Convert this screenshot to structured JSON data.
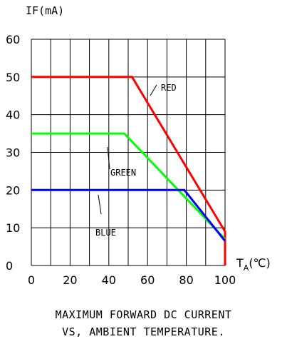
{
  "chart_data": {
    "type": "line",
    "ylabel": "IF(mA)",
    "xlabel": "T",
    "xlabel_subscript": "A",
    "xlabel_unit": "(℃)",
    "xlim": [
      0,
      100
    ],
    "ylim": [
      0,
      60
    ],
    "x_ticks": [
      0,
      20,
      40,
      60,
      80,
      100
    ],
    "y_ticks": [
      0,
      10,
      20,
      30,
      40,
      50,
      60
    ],
    "grid": true,
    "title": [
      "MAXIMUM FORWARD DC CURRENT",
      "VS, AMBIENT TEMPERATURE."
    ],
    "series": [
      {
        "name": "RED",
        "color": "#ff0000",
        "x": [
          0,
          52,
          100,
          100
        ],
        "y": [
          50,
          50,
          9,
          0
        ]
      },
      {
        "name": "GREEN",
        "color": "#00ff00",
        "x": [
          0,
          48,
          100
        ],
        "y": [
          35,
          35,
          7
        ]
      },
      {
        "name": "BLUE",
        "color": "#0000ff",
        "x": [
          0,
          79,
          100
        ],
        "y": [
          20,
          20,
          6.5
        ]
      }
    ],
    "annotations": [
      {
        "text": "RED",
        "series": "RED"
      },
      {
        "text": "GREEN",
        "series": "GREEN"
      },
      {
        "text": "BLUE",
        "series": "BLUE"
      }
    ]
  }
}
